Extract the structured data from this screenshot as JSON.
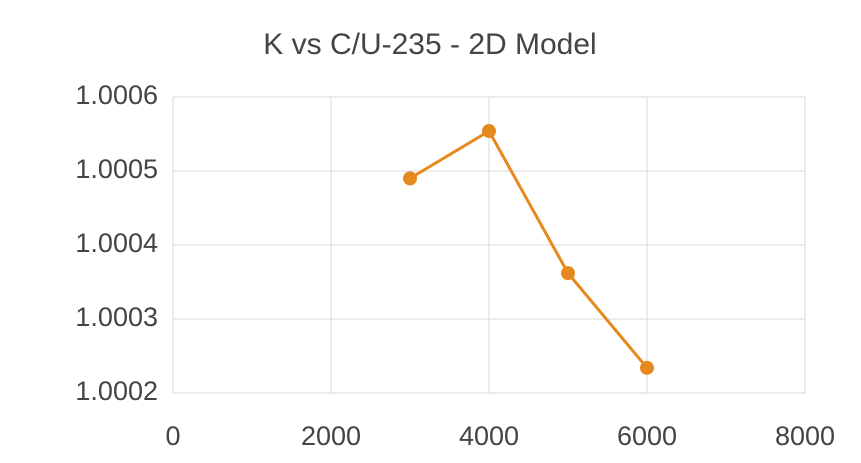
{
  "chart_data": {
    "type": "scatter",
    "title": "K vs C/U-235 - 2D Model",
    "x": [
      3000,
      4000,
      5000,
      6000
    ],
    "series": [
      {
        "color": "#e6891e",
        "values": [
          1.00049,
          1.000554,
          1.000362,
          1.000234
        ]
      }
    ],
    "xlim": [
      0,
      8000
    ],
    "xticks": [
      0,
      2000,
      4000,
      6000,
      8000
    ],
    "ylim": [
      1.0002,
      1.0006
    ],
    "yticks": [
      1.0002,
      1.0003,
      1.0004,
      1.0005,
      1.0006
    ],
    "grid": true
  }
}
